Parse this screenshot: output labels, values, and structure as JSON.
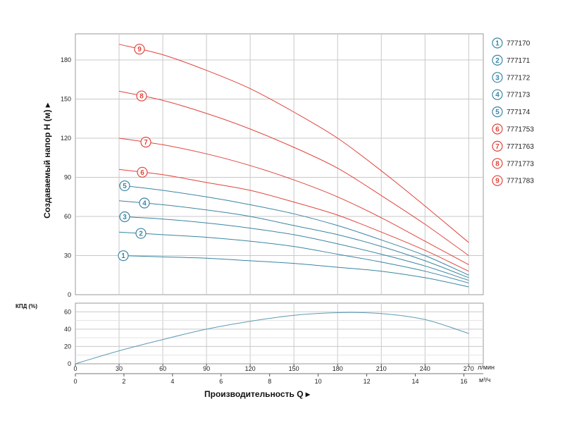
{
  "chart_data": [
    {
      "type": "line",
      "ylabel": "Создаваемый напор H (м) ▸",
      "ylim": [
        0,
        200
      ],
      "yticks": [
        0,
        30,
        60,
        90,
        120,
        150,
        180
      ],
      "xlim": [
        0,
        280
      ],
      "grid": true,
      "legend_position": "right",
      "series": [
        {
          "badge": "1",
          "name": "777170",
          "color": "#3a85a3",
          "x": [
            30,
            60,
            90,
            120,
            150,
            180,
            210,
            240,
            270
          ],
          "y": [
            30,
            29,
            28,
            26,
            24,
            21,
            18,
            13,
            6
          ]
        },
        {
          "badge": "2",
          "name": "777171",
          "color": "#3a85a3",
          "x": [
            30,
            60,
            90,
            120,
            150,
            180,
            210,
            240,
            270
          ],
          "y": [
            48,
            46,
            44,
            41,
            37,
            31,
            25,
            18,
            9
          ]
        },
        {
          "badge": "3",
          "name": "777172",
          "color": "#3a85a3",
          "x": [
            30,
            60,
            90,
            120,
            150,
            180,
            210,
            240,
            270
          ],
          "y": [
            60,
            58,
            55,
            51,
            46,
            39,
            31,
            22,
            11
          ]
        },
        {
          "badge": "4",
          "name": "777173",
          "color": "#3a85a3",
          "x": [
            30,
            60,
            90,
            120,
            150,
            180,
            210,
            240,
            270
          ],
          "y": [
            72,
            69,
            65,
            60,
            53,
            46,
            37,
            26,
            13
          ]
        },
        {
          "badge": "5",
          "name": "777174",
          "color": "#3a85a3",
          "x": [
            30,
            60,
            90,
            120,
            150,
            180,
            210,
            240,
            270
          ],
          "y": [
            84,
            80,
            75,
            69,
            62,
            53,
            42,
            30,
            15
          ]
        },
        {
          "badge": "6",
          "name": "7771753",
          "color": "#e0453c",
          "x": [
            30,
            60,
            90,
            120,
            150,
            180,
            210,
            240,
            270
          ],
          "y": [
            96,
            92,
            86,
            80,
            71,
            61,
            48,
            34,
            18
          ]
        },
        {
          "badge": "7",
          "name": "7771763",
          "color": "#e0453c",
          "x": [
            30,
            60,
            90,
            120,
            150,
            180,
            210,
            240,
            270
          ],
          "y": [
            120,
            115,
            108,
            99,
            88,
            75,
            59,
            41,
            23
          ]
        },
        {
          "badge": "8",
          "name": "7771773",
          "color": "#e0453c",
          "x": [
            30,
            60,
            90,
            120,
            150,
            180,
            210,
            240,
            270
          ],
          "y": [
            156,
            149,
            139,
            127,
            113,
            97,
            76,
            54,
            30
          ]
        },
        {
          "badge": "9",
          "name": "7771783",
          "color": "#e0453c",
          "x": [
            30,
            60,
            90,
            120,
            150,
            180,
            210,
            240,
            270
          ],
          "y": [
            192,
            184,
            172,
            158,
            140,
            120,
            95,
            68,
            40
          ]
        }
      ]
    },
    {
      "type": "line",
      "ylabel": "КПД (%)",
      "ylim": [
        0,
        70
      ],
      "yticks": [
        0,
        20,
        40,
        60
      ],
      "xlim": [
        0,
        280
      ],
      "grid": true,
      "series": [
        {
          "color": "#5b9bb5",
          "x": [
            0,
            30,
            60,
            90,
            120,
            150,
            180,
            210,
            240,
            270
          ],
          "y": [
            0,
            15,
            28,
            40,
            49,
            56,
            59,
            58,
            51,
            35
          ]
        }
      ]
    }
  ],
  "axes": {
    "x_top_ticks": [
      "0",
      "30",
      "60",
      "90",
      "120",
      "150",
      "180",
      "210",
      "240",
      "270"
    ],
    "x_top_unit": "л/мин",
    "x_bottom_ticks": [
      "0",
      "2",
      "4",
      "6",
      "8",
      "10",
      "12",
      "14",
      "16"
    ],
    "x_bottom_unit": "м³/ч",
    "xlabel": "Производительность Q ▸"
  }
}
